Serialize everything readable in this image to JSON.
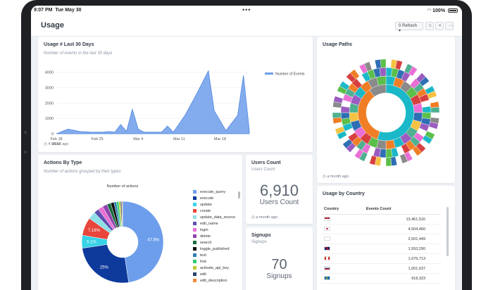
{
  "status": {
    "time": "9:07 PM",
    "date": "Tue May 30",
    "battery": "100%"
  },
  "header": {
    "title": "Usage",
    "refresh_label": "0 Refresh",
    "caret": "▾"
  },
  "usage_chart": {
    "title": "Usage # Last 30 Days",
    "subtitle": "Number of events in the last 30 days",
    "footer": "4 hours ago",
    "legend": "Number of Events"
  },
  "chart_data": [
    {
      "type": "area",
      "title": "Usage # Last 30 Days",
      "series": [
        {
          "name": "Number of Events",
          "values": [
            0,
            300,
            150,
            100,
            100,
            150,
            100,
            600,
            150,
            1600,
            300,
            100,
            100,
            500,
            100,
            1200,
            2600,
            4100,
            1500,
            200,
            1200,
            3800,
            200
          ]
        }
      ],
      "x": [
        0,
        2,
        4,
        6,
        8,
        9,
        10,
        11,
        12,
        13,
        14,
        15,
        18,
        19,
        20,
        22,
        24,
        26,
        27,
        29,
        31,
        32,
        33
      ],
      "xticks": [
        {
          "x": 0,
          "label": "Feb 18"
        },
        {
          "x": 7,
          "label": "Feb 25"
        },
        {
          "x": 14,
          "label": "Mar 4"
        },
        {
          "x": 21,
          "label": "Mar 11"
        },
        {
          "x": 28,
          "label": "Mar 18"
        }
      ],
      "xtick_year": "2018",
      "yticks": [
        "0",
        "1000",
        "2000",
        "3000",
        "4000"
      ],
      "ylim": [
        0,
        4400
      ],
      "color": "#6d9eeb"
    },
    {
      "type": "pie",
      "title": "Number of actions",
      "labels": [
        "execute_query",
        "execute",
        "update",
        "create",
        "update_data_source",
        "edit_name",
        "login",
        "delete",
        "search",
        "toggle_published",
        "test",
        "fork",
        "activate_api_key",
        "edit",
        "edit_description"
      ],
      "values": [
        47.6,
        25,
        5.1,
        7.18,
        3.0,
        2.0,
        2.0,
        1.9,
        1.5,
        1.3,
        1.0,
        0.9,
        0.7,
        0.5,
        0.3
      ],
      "slice_labels": [
        "47.6%",
        "25%",
        "5.1%",
        "7.18%",
        "",
        "",
        "",
        "",
        "",
        "",
        "",
        "",
        "",
        "",
        ""
      ]
    }
  ],
  "actions": {
    "title": "Actions By Type",
    "subtitle": "Number of actions grouped by their types",
    "legend": [
      {
        "label": "execute_query",
        "color": "#6d9eeb"
      },
      {
        "label": "execute",
        "color": "#0d3a9b"
      },
      {
        "label": "update",
        "color": "#37d3e6"
      },
      {
        "label": "create",
        "color": "#e8453c"
      },
      {
        "label": "update_data_source",
        "color": "#8fe0e6"
      },
      {
        "label": "edit_name",
        "color": "#5b4fb0"
      },
      {
        "label": "login",
        "color": "#e96fd5"
      },
      {
        "label": "delete",
        "color": "#8e44ad"
      },
      {
        "label": "search",
        "color": "#1a6b3c"
      },
      {
        "label": "toggle_published",
        "color": "#111111"
      },
      {
        "label": "test",
        "color": "#2f7fb6"
      },
      {
        "label": "fork",
        "color": "#2ecc71"
      },
      {
        "label": "activate_api_key",
        "color": "#bfc932"
      },
      {
        "label": "edit",
        "color": "#27446b"
      },
      {
        "label": "edit_description",
        "color": "#f08a3a"
      }
    ]
  },
  "users": {
    "title": "Users Count",
    "subtitle": "Users Count",
    "number": "6,910",
    "unit": "Users Count",
    "footer": "a month ago"
  },
  "signups": {
    "title": "Signups",
    "subtitle": "Signups",
    "number": "70",
    "unit": "Signups"
  },
  "paths": {
    "title": "Usage Paths",
    "footer": "a month ago"
  },
  "country": {
    "title": "Usage by Country",
    "headers": [
      "Country",
      "Events Count"
    ],
    "rows": [
      {
        "value": "13,461,516"
      },
      {
        "value": "4,504,460"
      },
      {
        "value": "2,501,449"
      },
      {
        "value": "1,593,290"
      },
      {
        "value": "1,075,713"
      },
      {
        "value": "1,001,637"
      },
      {
        "value": "918,323"
      }
    ]
  }
}
